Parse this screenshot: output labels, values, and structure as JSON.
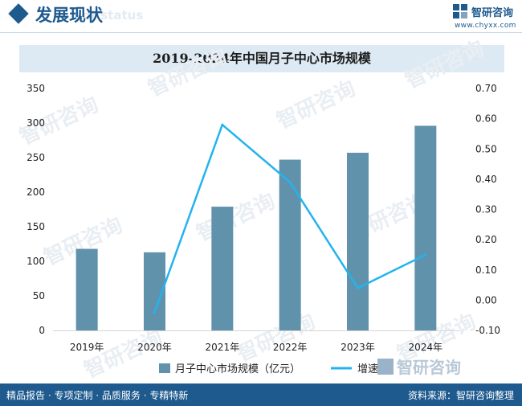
{
  "header": {
    "section_title": "发展现状",
    "section_subtitle": "ent status",
    "brand_name": "智研咨询",
    "brand_url": "www.chyxx.com"
  },
  "footer": {
    "left_text": "精品报告 · 专项定制 · 品质服务 · 专精特新",
    "source_text": "资料来源：智研咨询整理"
  },
  "watermark": {
    "text": "智研咨询"
  },
  "colors": {
    "bar": "#6192ac",
    "line": "#23b3ee",
    "brand": "#1e5a8e",
    "title_bar": "#deeaf3",
    "axis_text": "#222222"
  },
  "chart_data": {
    "type": "bar+line",
    "title": "2019-2024年中国月子中心市场规模",
    "categories": [
      "2019年",
      "2020年",
      "2021年",
      "2022年",
      "2023年",
      "2024年"
    ],
    "series": [
      {
        "name": "月子中心市场规模（亿元）",
        "type": "bar",
        "axis": "left",
        "values": [
          118,
          113,
          179,
          247,
          257,
          296
        ]
      },
      {
        "name": "增速",
        "type": "line",
        "axis": "right",
        "values": [
          null,
          -0.04,
          0.58,
          0.39,
          0.04,
          0.15
        ]
      }
    ],
    "y_left": {
      "min": 0,
      "max": 350,
      "step": 50,
      "ticks": [
        "0",
        "50",
        "100",
        "150",
        "200",
        "250",
        "300",
        "350"
      ]
    },
    "y_right": {
      "min": -0.1,
      "max": 0.7,
      "step": 0.1,
      "ticks": [
        "-0.10",
        "0.00",
        "0.10",
        "0.20",
        "0.30",
        "0.40",
        "0.50",
        "0.60",
        "0.70"
      ]
    },
    "legend_position": "bottom-center",
    "grid": false
  }
}
